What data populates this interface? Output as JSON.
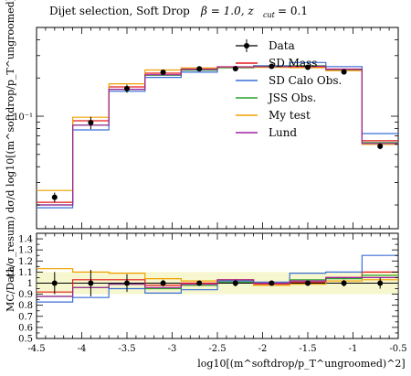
{
  "chart_data": [
    {
      "type": "line",
      "title": "Dijet selection, Soft Drop β = 1.0, z_cut = 0.1",
      "title_parts": {
        "main": "Dijet selection, Soft Drop",
        "beta": "β = 1.0, z",
        "cut": "cut",
        "zval": "= 0.1"
      },
      "ylabel": "(1/σ_resum) dσ/d log10[(m^softdrop/p_T^ungroomed)^2]",
      "yscale": "log",
      "ylim": [
        0.013,
        0.5
      ],
      "xlim": [
        -4.5,
        -0.5
      ],
      "yticklabels": [
        "10⁻¹"
      ],
      "bin_edges": [
        -4.5,
        -4.1,
        -3.7,
        -3.3,
        -2.9,
        -2.5,
        -2.1,
        -1.7,
        -1.3,
        -0.9,
        -0.5
      ],
      "series": [
        {
          "name": "Data",
          "color": "#000000",
          "x": [
            -4.3,
            -3.9,
            -3.5,
            -3.1,
            -2.7,
            -2.3,
            -1.9,
            -1.5,
            -1.1,
            -0.7
          ],
          "values": [
            0.023,
            0.089,
            0.165,
            0.222,
            0.236,
            0.237,
            0.247,
            0.243,
            0.223,
            0.058
          ],
          "errors": [
            0.002,
            0.01,
            0.012,
            0.006,
            0.005,
            0.006,
            0.005,
            0.005,
            0.006,
            0.003
          ]
        },
        {
          "name": "SD Mass",
          "color": "#e41a1c",
          "values": [
            0.021,
            0.092,
            0.17,
            0.218,
            0.236,
            0.245,
            0.244,
            0.245,
            0.235,
            0.064
          ]
        },
        {
          "name": "SD Calo Obs.",
          "color": "#3a6fd8",
          "values": [
            0.019,
            0.078,
            0.157,
            0.202,
            0.222,
            0.243,
            0.25,
            0.265,
            0.246,
            0.073
          ]
        },
        {
          "name": "JSS Obs.",
          "color": "#2ca02c",
          "values": [
            0.02,
            0.085,
            0.163,
            0.21,
            0.23,
            0.24,
            0.247,
            0.25,
            0.232,
            0.062
          ]
        },
        {
          "name": "My test",
          "color": "#f0a000",
          "values": [
            0.026,
            0.098,
            0.18,
            0.231,
            0.24,
            0.243,
            0.242,
            0.241,
            0.228,
            0.06
          ]
        },
        {
          "name": "Lund",
          "color": "#a020a0",
          "values": [
            0.02,
            0.085,
            0.163,
            0.212,
            0.234,
            0.244,
            0.246,
            0.247,
            0.234,
            0.061
          ]
        }
      ]
    },
    {
      "type": "line",
      "ylabel": "MC/Data",
      "xlabel": "log10[(m^softdrop/p_T^ungroomed)^2]",
      "ylim": [
        0.5,
        1.45
      ],
      "xlim": [
        -4.5,
        -0.5
      ],
      "xticklabels": [
        "-4.5",
        "-4",
        "-3.5",
        "-3",
        "-2.5",
        "-2",
        "-1.5",
        "-1",
        "-0.5"
      ],
      "yticklabels": [
        "0.5",
        "0.6",
        "0.7",
        "0.8",
        "0.9",
        "1",
        "1.1",
        "1.2",
        "1.3",
        "1.4"
      ],
      "series": [
        {
          "name": "Data",
          "color": "#000000",
          "x": [
            -4.3,
            -3.9,
            -3.5,
            -3.1,
            -2.7,
            -2.3,
            -1.9,
            -1.5,
            -1.1,
            -0.7
          ],
          "values": [
            1,
            1,
            1,
            1,
            1,
            1,
            1,
            1,
            1,
            1
          ],
          "errors": [
            0.1,
            0.12,
            0.08,
            0.03,
            0.02,
            0.03,
            0.02,
            0.02,
            0.03,
            0.05
          ]
        },
        {
          "name": "SD Mass",
          "color": "#e41a1c",
          "values": [
            0.92,
            1.03,
            1.03,
            0.98,
            1.0,
            1.03,
            0.99,
            1.01,
            1.05,
            1.1
          ]
        },
        {
          "name": "SD Calo Obs.",
          "color": "#3a6fd8",
          "values": [
            0.83,
            0.87,
            0.95,
            0.91,
            0.94,
            1.02,
            1.01,
            1.09,
            1.1,
            1.25
          ]
        },
        {
          "name": "JSS Obs.",
          "color": "#2ca02c",
          "values": [
            0.88,
            0.96,
            0.99,
            0.95,
            0.98,
            1.01,
            1.0,
            1.03,
            1.04,
            1.07
          ]
        },
        {
          "name": "My test",
          "color": "#f0a000",
          "values": [
            1.13,
            1.1,
            1.09,
            1.04,
            1.02,
            1.03,
            0.98,
            0.99,
            1.02,
            1.03
          ]
        },
        {
          "name": "Lund",
          "color": "#a020a0",
          "values": [
            0.88,
            0.96,
            0.99,
            0.96,
            0.99,
            1.03,
            1.0,
            1.02,
            1.05,
            1.05
          ]
        }
      ]
    }
  ]
}
